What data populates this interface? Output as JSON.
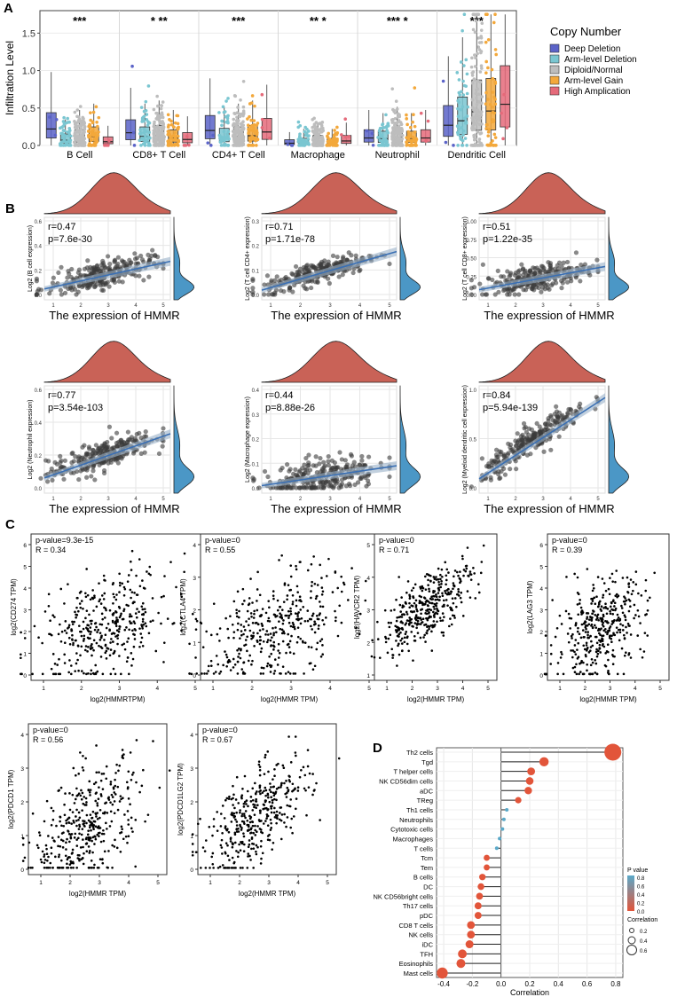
{
  "panel_labels": [
    "A",
    "B",
    "C",
    "D"
  ],
  "colors": {
    "deep_deletion": "#5b63c8",
    "arm_deletion": "#7ac6d1",
    "diploid": "#bdbdbd",
    "arm_gain": "#f3a83b",
    "high_amp": "#e56a7a",
    "density_top": "#c96257",
    "density_right": "#4b97c6",
    "regline": "#3a6fb3",
    "lollipop_neg": "#e2553a",
    "lollipop_pos": "#e2553a"
  },
  "chart_data": [
    {
      "id": "A",
      "type": "box",
      "title": "",
      "ylabel": "Infiltration Level",
      "ylim": [
        0,
        1.8
      ],
      "yticks": [
        "0.0",
        "0.5",
        "1.0",
        "1.5"
      ],
      "categories": [
        "B Cell",
        "CD8+ T Cell",
        "CD4+ T Cell",
        "Macrophage",
        "Neutrophil",
        "Dendritic Cell"
      ],
      "legend_title": "Copy Number",
      "series": [
        {
          "name": "Deep Deletion",
          "medians": [
            0.22,
            0.17,
            0.2,
            0.03,
            0.1,
            0.27
          ]
        },
        {
          "name": "Arm-level Deletion",
          "medians": [
            0.07,
            0.12,
            0.11,
            0.04,
            0.09,
            0.33
          ]
        },
        {
          "name": "Diploid/Normal",
          "medians": [
            0.1,
            0.13,
            0.12,
            0.06,
            0.11,
            0.45
          ]
        },
        {
          "name": "Arm-level Gain",
          "medians": [
            0.12,
            0.1,
            0.13,
            0.04,
            0.09,
            0.46
          ]
        },
        {
          "name": "High Amplication",
          "medians": [
            0.05,
            0.08,
            0.18,
            0.06,
            0.1,
            0.55
          ]
        }
      ],
      "significance": [
        "***",
        "*  **",
        "***",
        "**  *",
        "***  *",
        "***"
      ]
    },
    {
      "id": "B",
      "type": "scatter",
      "xlabel": "The expression of HMMR",
      "panels": [
        {
          "ylabel": "Log2 (B cell expression)",
          "r": "r=0.47",
          "p": "p=7.6e-30",
          "yticks": [
            "0.0",
            "0.2",
            "0.4",
            "0.6"
          ],
          "ylim": [
            0,
            0.6
          ],
          "slope": 0.05,
          "intercept": 0.02
        },
        {
          "ylabel": "Log2 (T cell CD4+ expression)",
          "r": "r=0.71",
          "p": "p=1.71e-78",
          "yticks": [
            "0.0",
            "0.1",
            "0.2",
            "0.3"
          ],
          "ylim": [
            0,
            0.3
          ],
          "slope": 0.035,
          "intercept": 0.0
        },
        {
          "ylabel": "Log2 (T cell CD8+ expression)",
          "r": "r=0.51",
          "p": "p=1.22e-35",
          "yticks": [
            "0.00",
            "0.25",
            "0.50",
            "0.75",
            "1.00"
          ],
          "ylim": [
            0,
            1.0
          ],
          "slope": 0.07,
          "intercept": 0.03
        },
        {
          "ylabel": "Log2 (Neutrophil expression)",
          "r": "r=0.77",
          "p": "p=3.54e-103",
          "yticks": [
            "0.0",
            "0.2",
            "0.4",
            "0.6"
          ],
          "ylim": [
            0,
            0.6
          ],
          "slope": 0.06,
          "intercept": 0.03
        },
        {
          "ylabel": "Log2 (Macrophage expression)",
          "r": "r=0.44",
          "p": "p=8.88e-26",
          "yticks": [
            "0.0",
            "0.1",
            "0.2",
            "0.3",
            "0.4"
          ],
          "ylim": [
            0,
            0.4
          ],
          "slope": 0.018,
          "intercept": 0.0
        },
        {
          "ylabel": "Log2 (Myeloid dendritic cell expression)",
          "r": "r=0.84",
          "p": "p=5.94e-139",
          "yticks": [
            "0.0",
            "0.5",
            "1.0"
          ],
          "ylim": [
            0,
            1.2
          ],
          "slope": 0.22,
          "intercept": 0.0
        }
      ],
      "xticks": [
        "1",
        "2",
        "3",
        "4",
        "5"
      ]
    },
    {
      "id": "C",
      "type": "scatter",
      "panels": [
        {
          "pval": "p-value=9.3e-15",
          "r": "R = 0.34",
          "ylabel": "log2(CD274 TPM)",
          "xlabel": "log2(HMMRTPM)",
          "yticks": [
            "0",
            "1",
            "2",
            "3",
            "4",
            "5",
            "6"
          ],
          "ymax": 6.5,
          "slope": 0.5,
          "intercept": 1.0
        },
        {
          "pval": "p-value=0",
          "r": "R = 0.55",
          "ylabel": "log2(CTLA4 TPM)",
          "xlabel": "log2(HMMR TPM)",
          "yticks": [
            "0",
            "1",
            "2",
            "3",
            "4"
          ],
          "ymax": 4.8,
          "slope": 0.55,
          "intercept": 0.2
        },
        {
          "pval": "p-value=0",
          "r": "R = 0.71",
          "ylabel": "log2(HAVCR2 TPM)",
          "xlabel": "log2(HMMR TPM)",
          "yticks": [
            "1",
            "2",
            "3",
            "4",
            "5"
          ],
          "ymax": 6.0,
          "slope": 0.8,
          "intercept": 1.0
        },
        {
          "pval": "p-value=0",
          "r": "R = 0.39",
          "ylabel": "log2(LAG3 TPM)",
          "xlabel": "log2(HMMR TPM)",
          "yticks": [
            "0",
            "1",
            "2",
            "3",
            "4",
            "5",
            "6"
          ],
          "ymax": 6.5,
          "slope": 0.55,
          "intercept": 0.8
        },
        {
          "pval": "p-value=0",
          "r": "R = 0.56",
          "ylabel": "log2(PDCD1 TPM)",
          "xlabel": "log2(HMMR TPM)",
          "yticks": [
            "0",
            "1",
            "2",
            "3",
            "4"
          ],
          "ymax": 4.6,
          "slope": 0.55,
          "intercept": 0.0
        },
        {
          "pval": "p-value=0",
          "r": "R = 0.67",
          "ylabel": "log2(PDCD1LG2 TPM)",
          "xlabel": "log2(HMMR TPM)",
          "yticks": [
            "0",
            "1",
            "2",
            "3",
            "4"
          ],
          "ymax": 4.8,
          "slope": 0.7,
          "intercept": 0.0
        }
      ],
      "xticks": [
        "1",
        "2",
        "3",
        "4",
        "5"
      ]
    },
    {
      "id": "D",
      "type": "lollipop",
      "xlabel": "Correlation",
      "xlim": [
        -0.45,
        0.85
      ],
      "xticks": [
        "-0.4",
        "-0.2",
        "0.0",
        "0.2",
        "0.4",
        "0.6",
        "0.8"
      ],
      "categories": [
        "Th2 cells",
        "Tgd",
        "T helper cells",
        "NK CD56dim cells",
        "aDC",
        "TReg",
        "Th1 cells",
        "Neutrophils",
        "Cytotoxic cells",
        "Macrophages",
        "T cells",
        "Tcm",
        "Tem",
        "B cells",
        "DC",
        "NK CD56bright cells",
        "Th17 cells",
        "pDC",
        "CD8 T cells",
        "NK cells",
        "iDC",
        "TFH",
        "Eosinophils",
        "Mast cells"
      ],
      "values": [
        0.78,
        0.3,
        0.21,
        0.2,
        0.19,
        0.12,
        0.04,
        0.02,
        0.01,
        -0.01,
        -0.03,
        -0.1,
        -0.1,
        -0.13,
        -0.14,
        -0.15,
        -0.16,
        -0.16,
        -0.21,
        -0.21,
        -0.22,
        -0.27,
        -0.28,
        -0.41
      ],
      "legend": {
        "pvalue_title": "P value",
        "pvalue_ticks": [
          "0.8",
          "0.6",
          "0.4",
          "0.2",
          "0.0"
        ],
        "corr_title": "Correlation",
        "corr_ticks": [
          "0.2",
          "0.4",
          "0.6"
        ]
      }
    }
  ]
}
